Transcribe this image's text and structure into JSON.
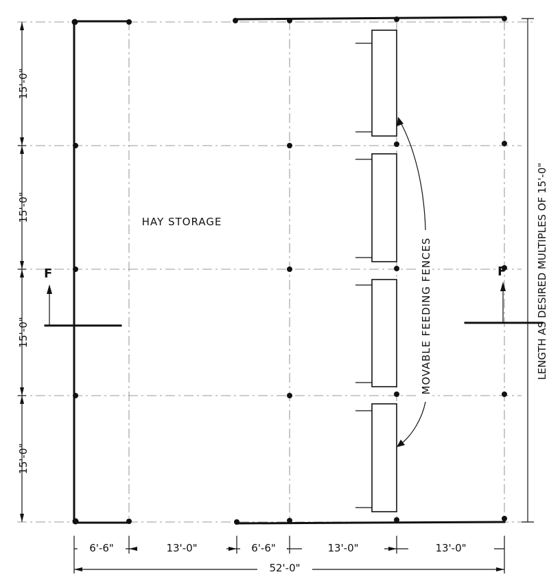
{
  "plan": {
    "area_label": "HAY STORAGE",
    "fence_label": "MOVABLE FEEDING FENCES",
    "length_label": "LENGTH AS DESIRED MULTIPLES OF 15'-0\"",
    "section_mark_left": "F",
    "section_mark_right": "F",
    "bay_dims": [
      "15'-0\"",
      "15'-0\"",
      "15'-0\"",
      "15'-0\""
    ],
    "width_dims": [
      "6'-6\"",
      "13'-0\"",
      "6'-6\"",
      "13'-0\"",
      "13'-0\""
    ],
    "overall_width": "52'-0\""
  }
}
